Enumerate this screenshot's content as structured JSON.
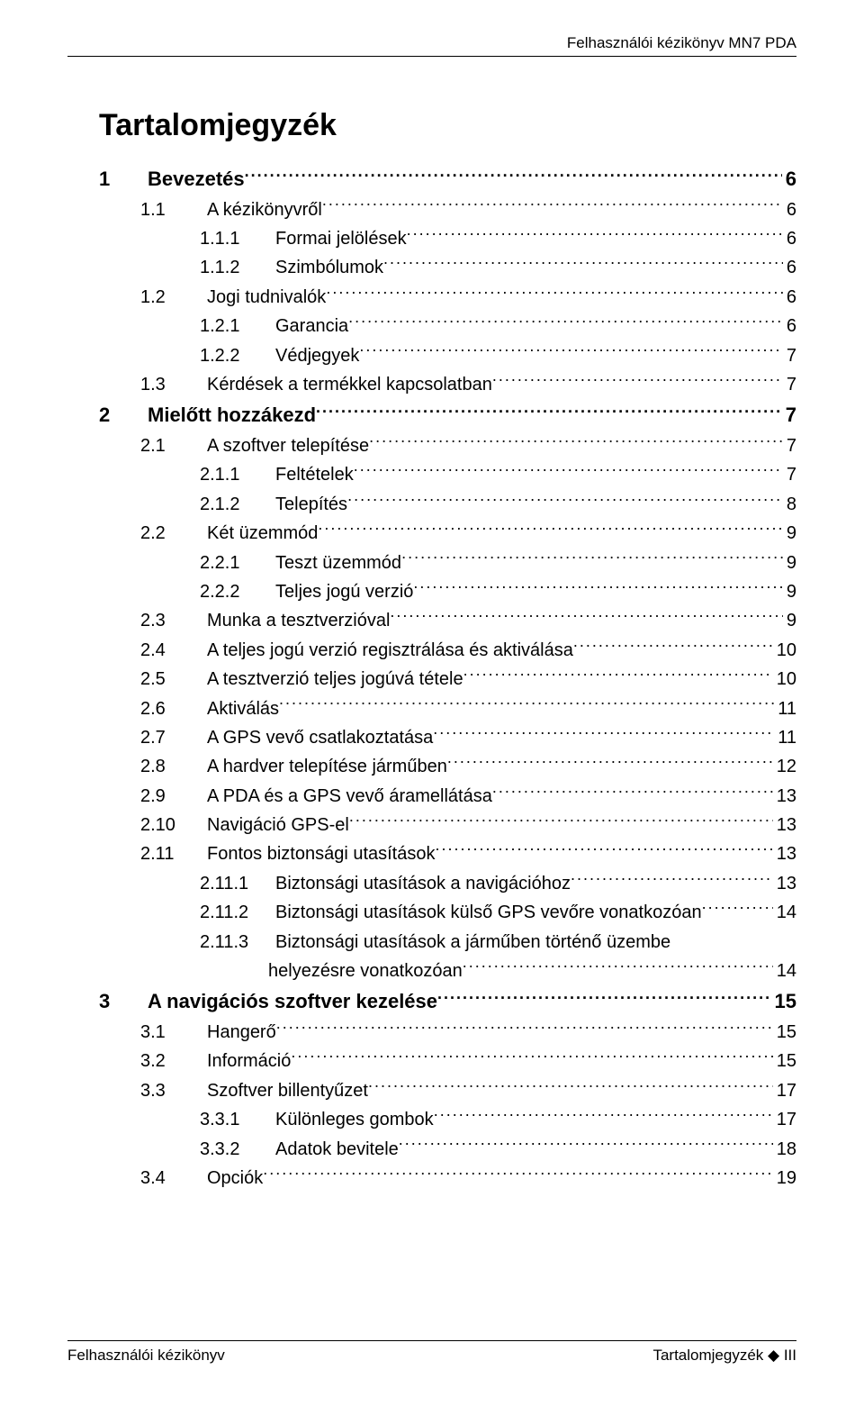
{
  "header": {
    "text": "Felhasználói kézikönyv MN7 PDA"
  },
  "toc_title": "Tartalomjegyzék",
  "entries": [
    {
      "level": 1,
      "num": "1",
      "title": "Bevezetés",
      "page": "6"
    },
    {
      "level": 2,
      "num": "1.1",
      "title": "A kézikönyvről",
      "page": "6"
    },
    {
      "level": 3,
      "num": "1.1.1",
      "title": "Formai jelölések",
      "page": "6"
    },
    {
      "level": 3,
      "num": "1.1.2",
      "title": "Szimbólumok",
      "page": "6"
    },
    {
      "level": 2,
      "num": "1.2",
      "title": "Jogi tudnivalók",
      "page": "6"
    },
    {
      "level": 3,
      "num": "1.2.1",
      "title": "Garancia",
      "page": "6"
    },
    {
      "level": 3,
      "num": "1.2.2",
      "title": "Védjegyek",
      "page": "7"
    },
    {
      "level": 2,
      "num": "1.3",
      "title": "Kérdések a termékkel kapcsolatban",
      "page": "7"
    },
    {
      "level": 1,
      "num": "2",
      "title": "Mielőtt hozzákezd",
      "page": "7"
    },
    {
      "level": 2,
      "num": "2.1",
      "title": "A szoftver telepítése",
      "page": "7"
    },
    {
      "level": 3,
      "num": "2.1.1",
      "title": "Feltételek",
      "page": "7"
    },
    {
      "level": 3,
      "num": "2.1.2",
      "title": "Telepítés",
      "page": "8"
    },
    {
      "level": 2,
      "num": "2.2",
      "title": "Két üzemmód",
      "page": "9"
    },
    {
      "level": 3,
      "num": "2.2.1",
      "title": "Teszt üzemmód",
      "page": "9"
    },
    {
      "level": 3,
      "num": "2.2.2",
      "title": "Teljes jogú verzió",
      "page": "9"
    },
    {
      "level": 2,
      "num": "2.3",
      "title": "Munka a tesztverzióval",
      "page": "9"
    },
    {
      "level": 2,
      "num": "2.4",
      "title": "A teljes jogú verzió regisztrálása és aktiválása",
      "page": "10"
    },
    {
      "level": 2,
      "num": "2.5",
      "title": "A tesztverzió teljes jogúvá tétele",
      "page": "10"
    },
    {
      "level": 2,
      "num": "2.6",
      "title": "Aktiválás",
      "page": "11"
    },
    {
      "level": 2,
      "num": "2.7",
      "title": "A GPS vevő csatlakoztatása",
      "page": "11"
    },
    {
      "level": 2,
      "num": "2.8",
      "title": "A hardver telepítése járműben",
      "page": "12"
    },
    {
      "level": 2,
      "num": "2.9",
      "title": "A PDA és a GPS vevő áramellátása",
      "page": "13"
    },
    {
      "level": 2,
      "num": "2.10",
      "title": "Navigáció GPS-el",
      "page": "13"
    },
    {
      "level": 2,
      "num": "2.11",
      "title": "Fontos biztonsági utasítások",
      "page": "13"
    },
    {
      "level": 3,
      "num": "2.11.1",
      "title": "Biztonsági utasítások a navigációhoz",
      "page": "13"
    },
    {
      "level": 3,
      "num": "2.11.2",
      "title": "Biztonsági utasítások külső GPS vevőre vonatkozóan",
      "page": "14"
    },
    {
      "level": 3,
      "num": "2.11.3",
      "title": "Biztonsági utasítások a járműben történő üzembe",
      "cont": "helyezésre vonatkozóan",
      "page": "14"
    },
    {
      "level": 1,
      "num": "3",
      "title": "A navigációs szoftver kezelése",
      "page": "15"
    },
    {
      "level": 2,
      "num": "3.1",
      "title": "Hangerő",
      "page": "15"
    },
    {
      "level": 2,
      "num": "3.2",
      "title": "Információ",
      "page": "15"
    },
    {
      "level": 2,
      "num": "3.3",
      "title": "Szoftver billentyűzet",
      "page": "17"
    },
    {
      "level": 3,
      "num": "3.3.1",
      "title": "Különleges gombok",
      "page": "17"
    },
    {
      "level": 3,
      "num": "3.3.2",
      "title": "Adatok bevitele",
      "page": "18"
    },
    {
      "level": 2,
      "num": "3.4",
      "title": "Opciók",
      "page": "19"
    }
  ],
  "footer": {
    "left": "Felhasználói kézikönyv",
    "right_label": "Tartalomjegyzék",
    "right_page": "III",
    "bullet": "◆"
  }
}
